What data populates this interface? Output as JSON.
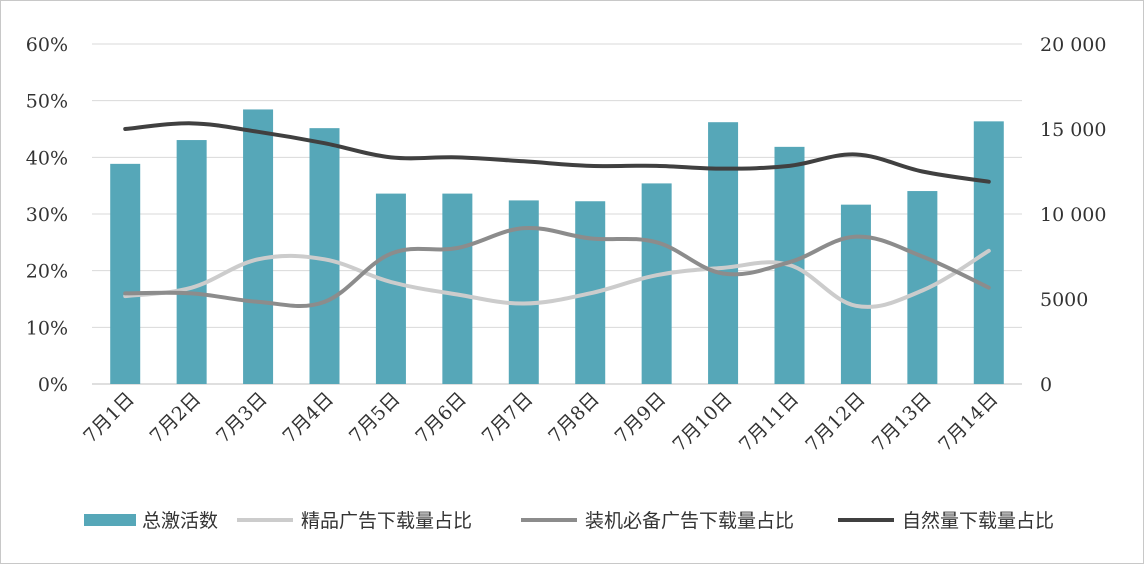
{
  "chart_data": {
    "type": "bar",
    "categories": [
      "7月1日",
      "7月2日",
      "7月3日",
      "7月4日",
      "7月5日",
      "7月6日",
      "7月7日",
      "7月8日",
      "7月9日",
      "7月10日",
      "7月11日",
      "7月12日",
      "7月13日",
      "7月14日"
    ],
    "series": [
      {
        "name": "总激活数",
        "type": "bar",
        "axis": "right",
        "color": "#56a7b8",
        "values": [
          12950,
          14350,
          16150,
          15050,
          11200,
          11200,
          10800,
          10750,
          11800,
          15400,
          13950,
          10550,
          11350,
          15450
        ]
      },
      {
        "name": "精品广告下载量占比",
        "type": "line",
        "axis": "left",
        "color": "#cccccc",
        "values": [
          15.5,
          17,
          22,
          22,
          18,
          15.8,
          14.2,
          16,
          19.2,
          20.5,
          21,
          13.8,
          16.5,
          23.5
        ]
      },
      {
        "name": "装机必备广告下载量占比",
        "type": "line",
        "axis": "left",
        "color": "#8c8c8c",
        "values": [
          16,
          16,
          14.5,
          14.5,
          23,
          24,
          27.5,
          25.7,
          25,
          19.5,
          21.5,
          26,
          22.5,
          17
        ]
      },
      {
        "name": "自然量下载量占比",
        "type": "line",
        "axis": "left",
        "color": "#404040",
        "values": [
          45,
          46,
          44.5,
          42.5,
          40,
          40,
          39.3,
          38.5,
          38.5,
          38,
          38.5,
          40.5,
          37.5,
          35.7
        ]
      }
    ],
    "y_left": {
      "ylim": [
        0,
        60
      ],
      "ticks": [
        "0%",
        "10%",
        "20%",
        "30%",
        "40%",
        "50%",
        "60%"
      ]
    },
    "y_right": {
      "ylim": [
        0,
        20000
      ],
      "ticks": [
        "0",
        "5000",
        "10 000",
        "15 000",
        "20 000"
      ]
    },
    "grid": true,
    "legend_position": "bottom"
  }
}
